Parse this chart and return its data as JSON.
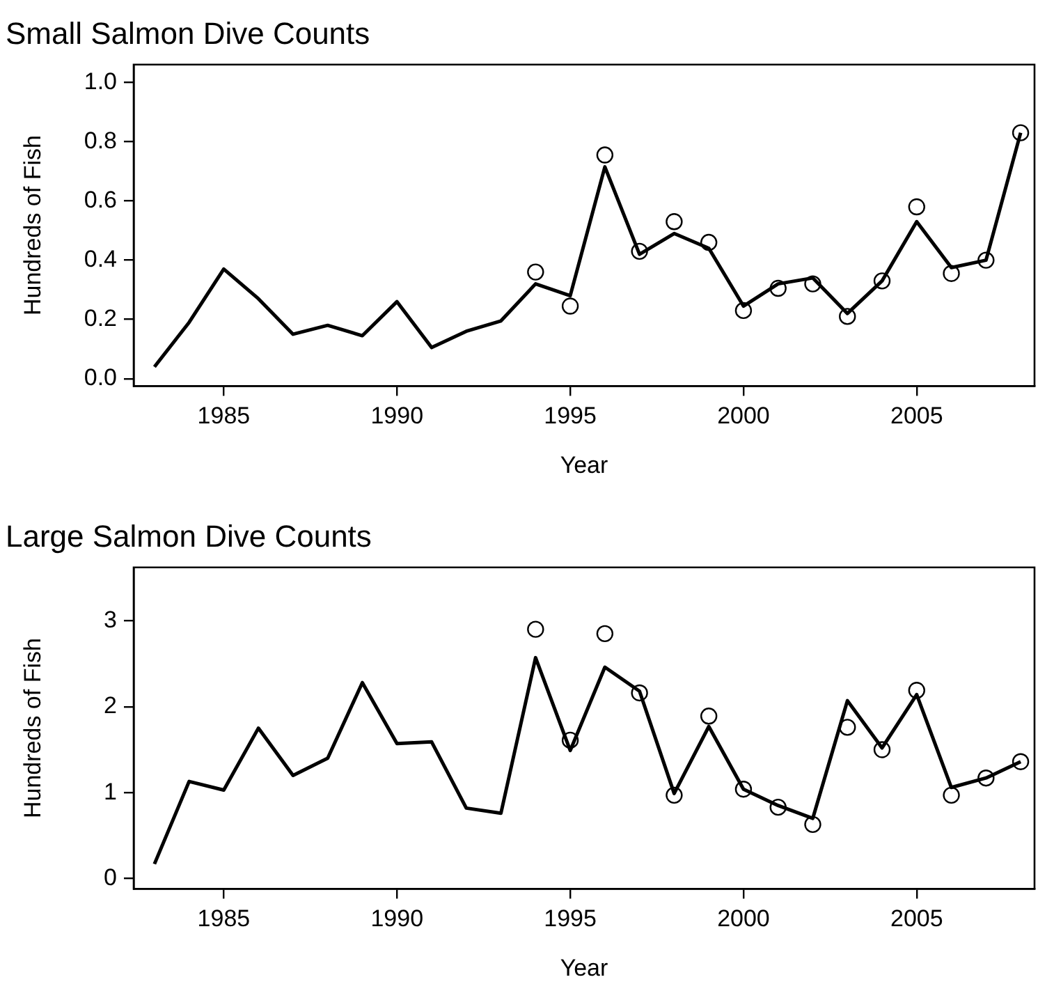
{
  "chart_data": [
    {
      "type": "line",
      "title": "Small Salmon Dive Counts",
      "xlabel": "Year",
      "ylabel": "Hundreds of Fish",
      "x": [
        1983,
        1984,
        1985,
        1986,
        1987,
        1988,
        1989,
        1990,
        1991,
        1992,
        1993,
        1994,
        1995,
        1996,
        1997,
        1998,
        1999,
        2000,
        2001,
        2002,
        2003,
        2004,
        2005,
        2006,
        2007,
        2008
      ],
      "series": [
        {
          "type": "line",
          "color": "#000000",
          "marker": "none",
          "values": [
            0.04,
            0.19,
            0.37,
            0.27,
            0.15,
            0.18,
            0.145,
            0.26,
            0.105,
            0.16,
            0.195,
            0.32,
            0.28,
            0.715,
            0.42,
            0.49,
            0.44,
            0.245,
            0.32,
            0.34,
            0.22,
            0.33,
            0.53,
            0.375,
            0.4,
            0.83
          ]
        },
        {
          "type": "scatter",
          "color": "#000000",
          "marker": "circle",
          "x": [
            1994,
            1995,
            1996,
            1997,
            1998,
            1999,
            2000,
            2001,
            2002,
            2003,
            2004,
            2005,
            2006,
            2007,
            2008
          ],
          "values": [
            0.36,
            0.245,
            0.755,
            0.43,
            0.53,
            0.46,
            0.23,
            0.305,
            0.32,
            0.21,
            0.33,
            0.58,
            0.355,
            0.4,
            0.83
          ]
        }
      ],
      "xlim": [
        1982.4,
        2008.4
      ],
      "xticks": [
        1985,
        1990,
        1995,
        2000,
        2005
      ],
      "ylim": [
        -0.025,
        1.06
      ],
      "yticks": [
        {
          "value": 0,
          "label": "0.0"
        },
        0.2,
        0.4,
        0.6,
        0.8,
        {
          "value": 1,
          "label": "1.0"
        }
      ],
      "grid": false,
      "legend": false
    },
    {
      "type": "line",
      "title": "Large Salmon Dive Counts",
      "xlabel": "Year",
      "ylabel": "Hundreds of Fish",
      "x": [
        1983,
        1984,
        1985,
        1986,
        1987,
        1988,
        1989,
        1990,
        1991,
        1992,
        1993,
        1994,
        1995,
        1996,
        1997,
        1998,
        1999,
        2000,
        2001,
        2002,
        2003,
        2004,
        2005,
        2006,
        2007,
        2008
      ],
      "series": [
        {
          "type": "line",
          "color": "#000000",
          "marker": "none",
          "values": [
            0.17,
            1.13,
            1.03,
            1.75,
            1.2,
            1.4,
            2.28,
            1.57,
            1.59,
            0.82,
            0.76,
            2.57,
            1.49,
            2.46,
            2.18,
            0.99,
            1.77,
            1.04,
            0.85,
            0.7,
            2.07,
            1.52,
            2.14,
            1.06,
            1.17,
            1.36
          ]
        },
        {
          "type": "scatter",
          "color": "#000000",
          "marker": "circle",
          "x": [
            1994,
            1995,
            1996,
            1997,
            1998,
            1999,
            2000,
            2001,
            2002,
            2003,
            2004,
            2005,
            2006,
            2007,
            2008
          ],
          "values": [
            2.9,
            1.61,
            2.85,
            2.16,
            0.97,
            1.89,
            1.04,
            0.83,
            0.63,
            1.76,
            1.5,
            2.19,
            0.97,
            1.17,
            1.36
          ]
        }
      ],
      "xlim": [
        1982.4,
        2008.4
      ],
      "xticks": [
        1985,
        1990,
        1995,
        2000,
        2005
      ],
      "ylim": [
        -0.12,
        3.62
      ],
      "yticks": [
        0,
        1,
        2,
        3
      ],
      "grid": false,
      "legend": false
    }
  ]
}
